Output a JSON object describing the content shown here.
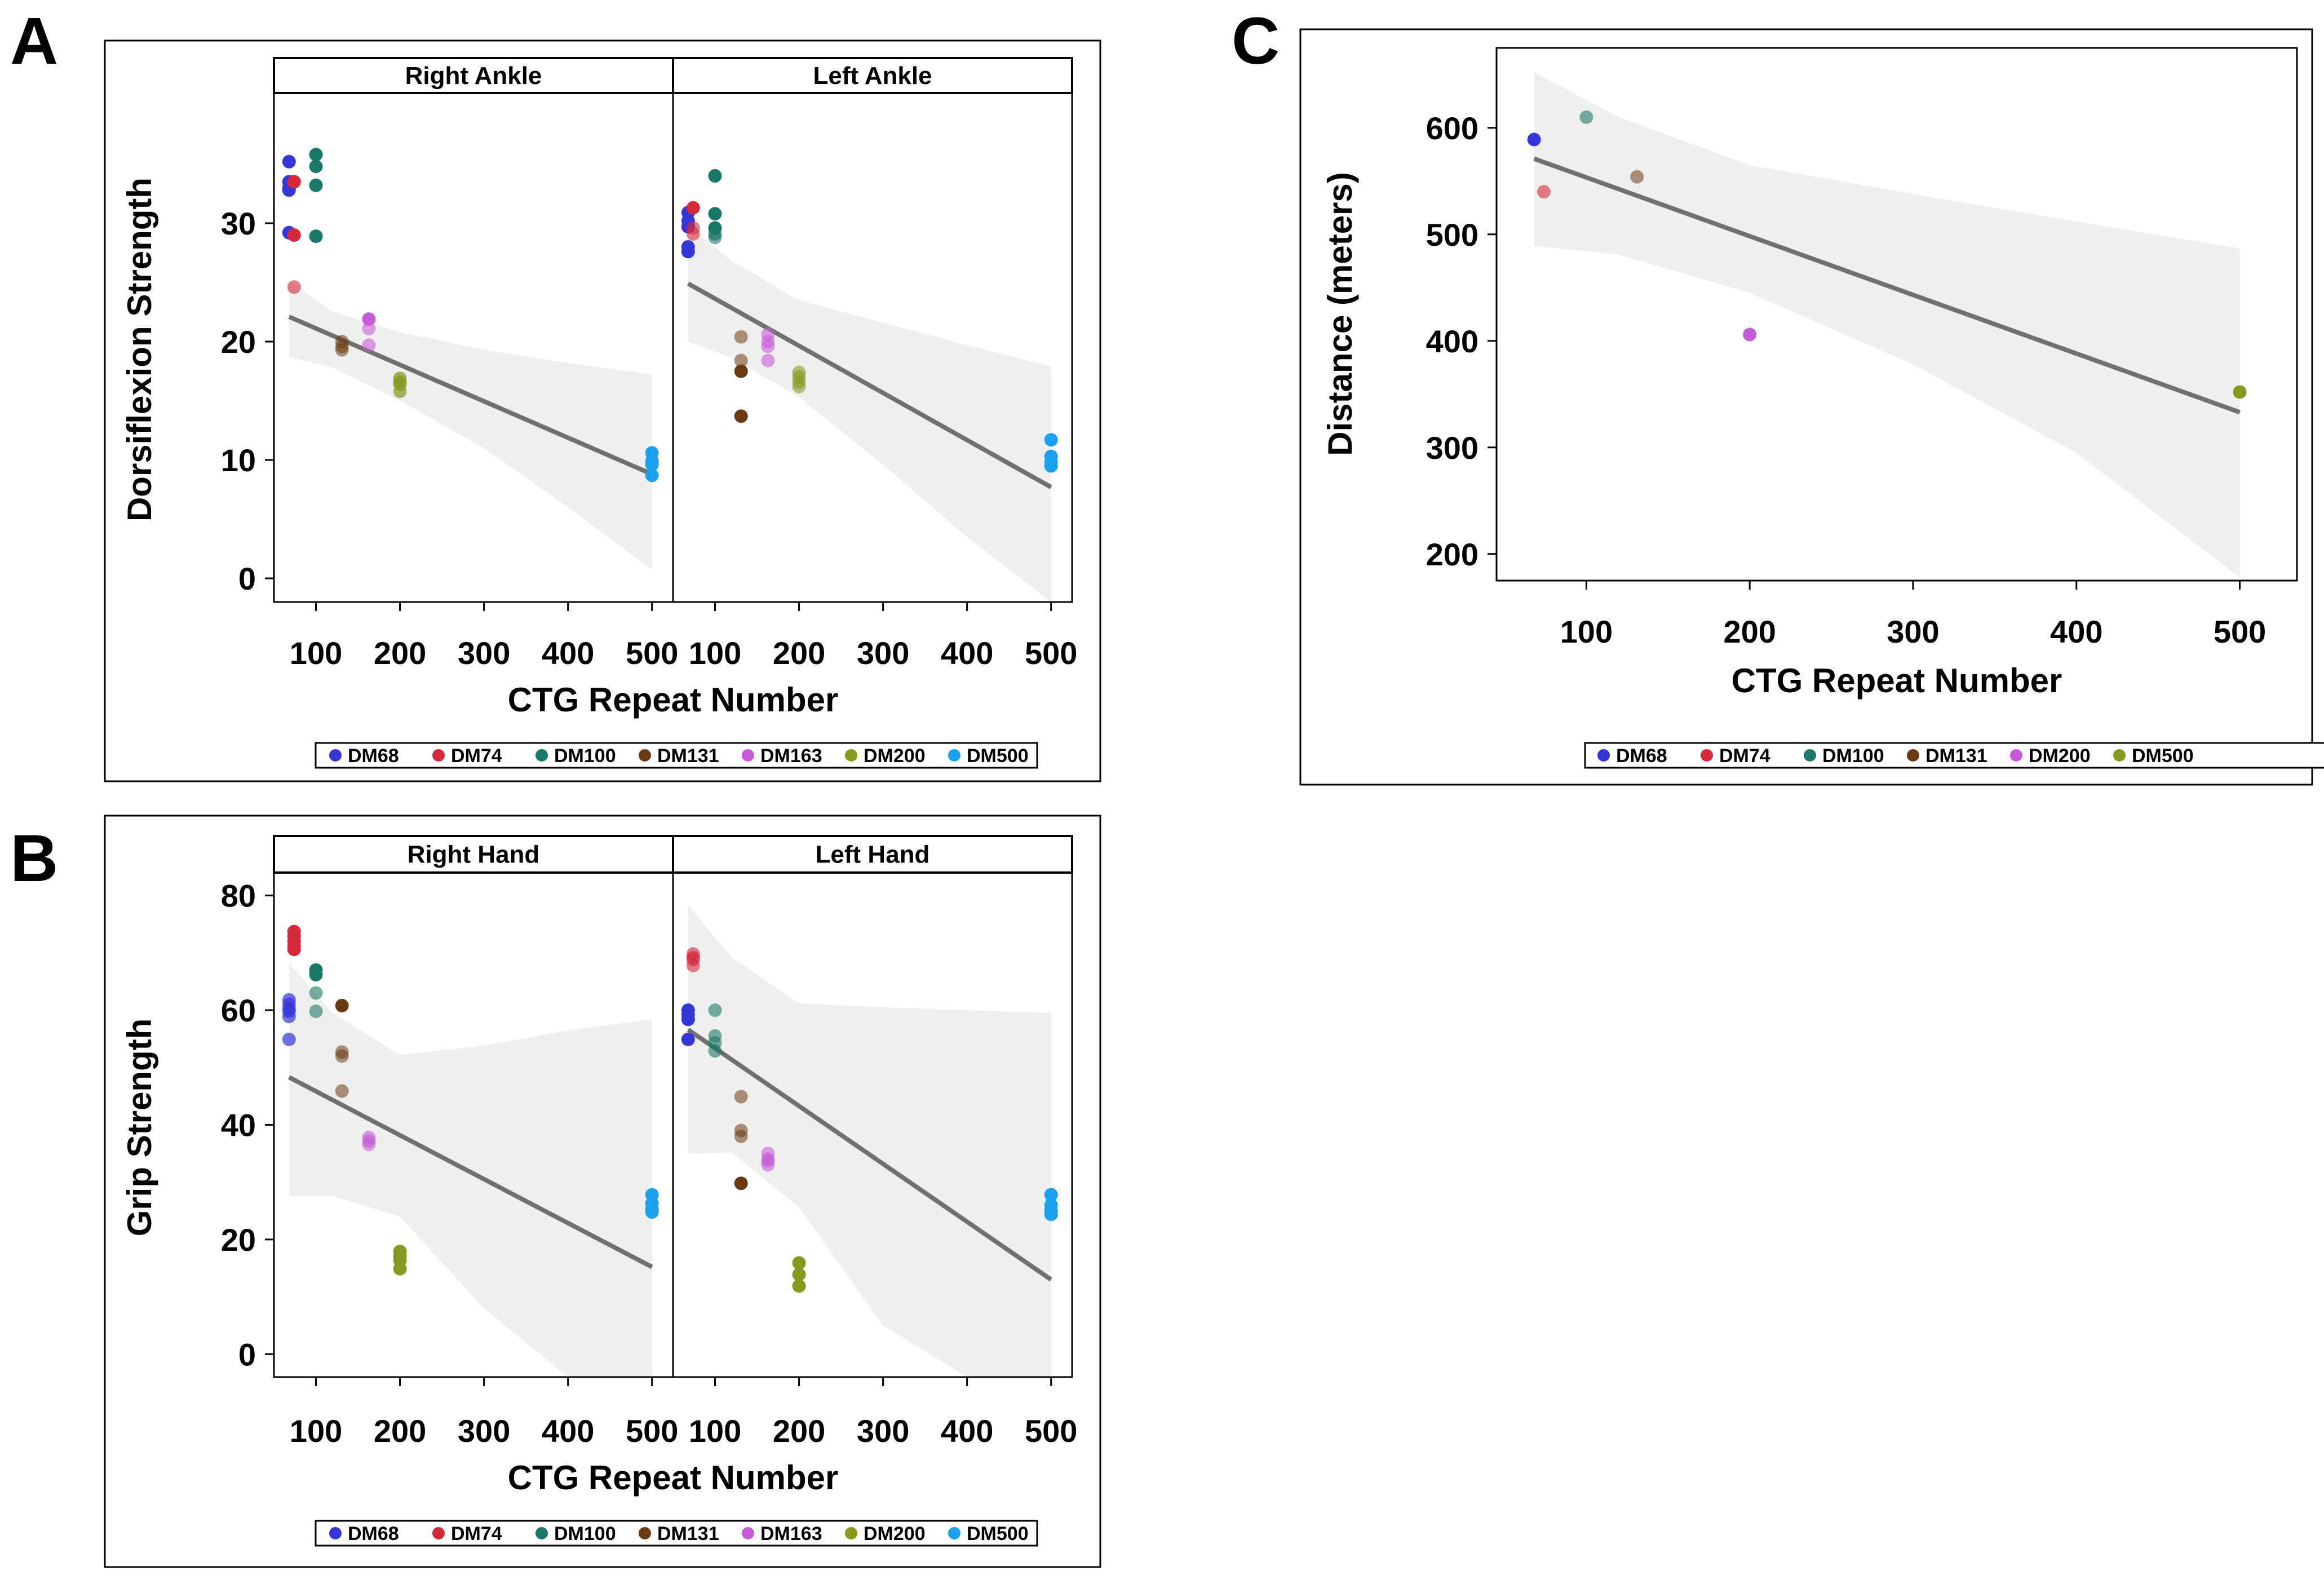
{
  "panel_labels": [
    "A",
    "B",
    "C"
  ],
  "colors": {
    "DM68": "#3535d8",
    "DM74": "#d42a3c",
    "DM100": "#1a7868",
    "DM131": "#6b3a12",
    "DM163": "#c65bd8",
    "DM200": "#86981e",
    "DM500": "#1aa0ee",
    "regression_line": "#707070",
    "confidence_band": "#efefef"
  },
  "chart_data": [
    {
      "id": "A",
      "type": "scatter",
      "facets": [
        "Right Ankle",
        "Left Ankle"
      ],
      "ylabel": "Dorsiflexion Strength",
      "xlabel": "CTG Repeat Number",
      "xlim": [
        50,
        525
      ],
      "ylim": [
        -2,
        41
      ],
      "xticks": [
        100,
        200,
        300,
        400,
        500
      ],
      "yticks": [
        0,
        10,
        20,
        30
      ],
      "legend": [
        "DM68",
        "DM74",
        "DM100",
        "DM131",
        "DM163",
        "DM200",
        "DM500"
      ],
      "panels": [
        {
          "facet": "Right Ankle",
          "fit": {
            "x": [
              68,
              500
            ],
            "y": [
              22.1,
              8.8
            ]
          },
          "band": {
            "x": [
              68,
              120,
              200,
              300,
              400,
              500
            ],
            "upper": [
              25.2,
              22.5,
              20.8,
              19.3,
              18.2,
              17.2
            ],
            "lower": [
              18.7,
              17.8,
              15.0,
              11.0,
              6.0,
              0.7
            ]
          },
          "series": [
            {
              "name": "DM68",
              "x": [
                68,
                68,
                68,
                68,
                68,
                68
              ],
              "y": [
                35.2,
                33.5,
                32.8,
                29.2,
                29.2,
                33.0
              ]
            },
            {
              "name": "DM74",
              "x": [
                74,
                74,
                74,
                74
              ],
              "y": [
                33.5,
                33.5,
                29.0,
                24.6
              ],
              "alpha": [
                1,
                1,
                1,
                0.6
              ]
            },
            {
              "name": "DM100",
              "x": [
                100,
                100,
                100,
                100
              ],
              "y": [
                35.8,
                34.8,
                33.2,
                28.9
              ]
            },
            {
              "name": "DM131",
              "x": [
                131,
                131,
                131
              ],
              "y": [
                20.0,
                19.6,
                19.3
              ],
              "alpha": [
                0.55,
                0.55,
                0.55
              ]
            },
            {
              "name": "DM163",
              "x": [
                163,
                163,
                163
              ],
              "y": [
                21.9,
                21.1,
                19.7
              ],
              "alpha": [
                1,
                0.6,
                0.6
              ]
            },
            {
              "name": "DM200",
              "x": [
                200,
                200,
                200,
                200
              ],
              "y": [
                16.9,
                16.6,
                16.4,
                15.8
              ],
              "alpha": [
                0.7,
                0.7,
                0.7,
                0.7
              ]
            },
            {
              "name": "DM500",
              "x": [
                500,
                500,
                500,
                500
              ],
              "y": [
                10.6,
                9.9,
                9.6,
                8.7
              ]
            }
          ]
        },
        {
          "facet": "Left Ankle",
          "fit": {
            "x": [
              68,
              500
            ],
            "y": [
              24.9,
              7.7
            ]
          },
          "band": {
            "x": [
              68,
              120,
              200,
              300,
              400,
              500
            ],
            "upper": [
              29.8,
              26.8,
              23.5,
              21.6,
              19.7,
              17.9
            ],
            "lower": [
              20.0,
              18.6,
              15.3,
              9.6,
              3.5,
              -2.0
            ]
          },
          "series": [
            {
              "name": "DM68",
              "x": [
                68,
                68,
                68,
                68,
                68
              ],
              "y": [
                30.9,
                30.2,
                29.7,
                28.0,
                27.6
              ]
            },
            {
              "name": "DM74",
              "x": [
                74,
                74,
                74
              ],
              "y": [
                31.3,
                29.6,
                29.1
              ],
              "alpha": [
                1,
                0.6,
                0.6
              ]
            },
            {
              "name": "DM100",
              "x": [
                100,
                100,
                100,
                100,
                100
              ],
              "y": [
                34.0,
                30.8,
                29.6,
                29.1,
                28.8
              ],
              "alpha": [
                1,
                1,
                1,
                0.7,
                0.6
              ]
            },
            {
              "name": "DM131",
              "x": [
                131,
                131,
                131,
                131
              ],
              "y": [
                20.4,
                18.4,
                17.5,
                13.7
              ],
              "alpha": [
                0.55,
                0.55,
                1,
                1
              ]
            },
            {
              "name": "DM163",
              "x": [
                163,
                163,
                163,
                163
              ],
              "y": [
                20.6,
                20.0,
                19.6,
                18.4
              ],
              "alpha": [
                0.6,
                0.6,
                0.6,
                0.6
              ]
            },
            {
              "name": "DM200",
              "x": [
                200,
                200,
                200,
                200
              ],
              "y": [
                17.4,
                17.0,
                16.6,
                16.2
              ],
              "alpha": [
                0.6,
                0.6,
                0.6,
                0.6
              ]
            },
            {
              "name": "DM500",
              "x": [
                500,
                500,
                500,
                500
              ],
              "y": [
                11.7,
                10.3,
                9.8,
                9.5
              ]
            }
          ]
        }
      ]
    },
    {
      "id": "B",
      "type": "scatter",
      "facets": [
        "Right Hand",
        "Left Hand"
      ],
      "ylabel": "Grip Strength",
      "xlabel": "CTG Repeat Number",
      "xlim": [
        50,
        525
      ],
      "ylim": [
        -4,
        84
      ],
      "xticks": [
        100,
        200,
        300,
        400,
        500
      ],
      "yticks": [
        0,
        20,
        40,
        60,
        80
      ],
      "legend": [
        "DM68",
        "DM74",
        "DM100",
        "DM131",
        "DM163",
        "DM200",
        "DM500"
      ],
      "panels": [
        {
          "facet": "Right Hand",
          "fit": {
            "x": [
              68,
              500
            ],
            "y": [
              48.3,
              15.2
            ]
          },
          "band": {
            "x": [
              68,
              120,
              200,
              300,
              400,
              500
            ],
            "upper": [
              68.2,
              59.5,
              52.2,
              53.8,
              56.5,
              58.4
            ],
            "lower": [
              27.6,
              27.6,
              24.0,
              8.0,
              -4.0,
              -4.0
            ]
          },
          "series": [
            {
              "name": "DM68",
              "x": [
                68,
                68,
                68,
                68,
                68,
                68
              ],
              "y": [
                61.8,
                61.0,
                60.2,
                59.8,
                58.9,
                54.9
              ],
              "alpha": [
                0.7,
                0.7,
                0.7,
                0.7,
                0.7,
                0.7
              ]
            },
            {
              "name": "DM74",
              "x": [
                74,
                74,
                74,
                74,
                74
              ],
              "y": [
                73.7,
                72.9,
                72.1,
                71.2,
                70.6
              ]
            },
            {
              "name": "DM100",
              "x": [
                100,
                100,
                100,
                100
              ],
              "y": [
                67.0,
                66.2,
                63.0,
                59.8
              ],
              "alpha": [
                1,
                1,
                0.6,
                0.6
              ]
            },
            {
              "name": "DM131",
              "x": [
                131,
                131,
                131,
                131
              ],
              "y": [
                60.8,
                52.7,
                52.0,
                45.9
              ],
              "alpha": [
                1,
                0.55,
                0.55,
                0.55
              ]
            },
            {
              "name": "DM163",
              "x": [
                163,
                163,
                163
              ],
              "y": [
                37.8,
                37.2,
                36.6
              ],
              "alpha": [
                0.6,
                0.6,
                0.6
              ]
            },
            {
              "name": "DM200",
              "x": [
                200,
                200,
                200,
                200
              ],
              "y": [
                17.9,
                17.1,
                16.4,
                14.9
              ]
            },
            {
              "name": "DM500",
              "x": [
                500,
                500,
                500,
                500
              ],
              "y": [
                27.8,
                26.3,
                25.3,
                24.8
              ]
            }
          ]
        },
        {
          "facet": "Left Hand",
          "fit": {
            "x": [
              68,
              500
            ],
            "y": [
              56.6,
              13.0
            ]
          },
          "band": {
            "x": [
              68,
              120,
              200,
              300,
              400,
              500
            ],
            "upper": [
              78.3,
              69.2,
              61.2,
              60.5,
              60.0,
              59.5
            ],
            "lower": [
              35.0,
              35.2,
              25.6,
              5.0,
              -4.0,
              -4.0
            ]
          },
          "series": [
            {
              "name": "DM68",
              "x": [
                68,
                68,
                68,
                68
              ],
              "y": [
                60.0,
                59.2,
                58.4,
                54.9
              ]
            },
            {
              "name": "DM74",
              "x": [
                74,
                74,
                74,
                74
              ],
              "y": [
                69.8,
                69.2,
                68.8,
                67.8
              ],
              "alpha": [
                0.6,
                0.6,
                0.6,
                0.6
              ]
            },
            {
              "name": "DM100",
              "x": [
                100,
                100,
                100,
                100
              ],
              "y": [
                60.0,
                55.5,
                54.3,
                52.9
              ],
              "alpha": [
                0.6,
                0.6,
                0.6,
                0.6
              ]
            },
            {
              "name": "DM131",
              "x": [
                131,
                131,
                131,
                131
              ],
              "y": [
                44.9,
                39.0,
                38.0,
                29.8
              ],
              "alpha": [
                0.55,
                0.55,
                0.55,
                1
              ]
            },
            {
              "name": "DM163",
              "x": [
                163,
                163,
                163,
                163
              ],
              "y": [
                35.0,
                34.0,
                33.7,
                33.0
              ],
              "alpha": [
                0.6,
                0.6,
                0.6,
                0.6
              ]
            },
            {
              "name": "DM200",
              "x": [
                200,
                200,
                200
              ],
              "y": [
                15.9,
                13.9,
                11.9
              ]
            },
            {
              "name": "DM500",
              "x": [
                500,
                500,
                500,
                500
              ],
              "y": [
                27.8,
                26.0,
                25.0,
                24.4
              ]
            }
          ]
        }
      ]
    },
    {
      "id": "C",
      "type": "scatter",
      "facets": [],
      "ylabel": "Distance (meters)",
      "xlabel": "CTG Repeat Number",
      "xlim": [
        45,
        535
      ],
      "ylim": [
        175,
        675
      ],
      "xticks": [
        100,
        200,
        300,
        400,
        500
      ],
      "yticks": [
        200,
        300,
        400,
        500,
        600
      ],
      "legend": [
        "DM68",
        "DM74",
        "DM100",
        "DM131",
        "DM200",
        "DM500"
      ],
      "panels": [
        {
          "facet": "",
          "fit": {
            "x": [
              68,
              500
            ],
            "y": [
              571,
              333
            ]
          },
          "band": {
            "x": [
              68,
              120,
              200,
              300,
              400,
              500
            ],
            "upper": [
              652,
              610,
              565,
              538,
              512,
              487
            ],
            "lower": [
              489,
              481,
              445,
              378,
              295,
              178
            ]
          },
          "series": [
            {
              "name": "DM68",
              "x": [
                68
              ],
              "y": [
                589
              ]
            },
            {
              "name": "DM74",
              "x": [
                74
              ],
              "y": [
                540
              ],
              "alpha": [
                0.6
              ]
            },
            {
              "name": "DM100",
              "x": [
                100
              ],
              "y": [
                610
              ],
              "alpha": [
                0.6
              ]
            },
            {
              "name": "DM131",
              "x": [
                131
              ],
              "y": [
                554
              ],
              "alpha": [
                0.55
              ]
            },
            {
              "name": "DM200",
              "x": [
                200
              ],
              "y": [
                406
              ],
              "colorKey": "DM163"
            },
            {
              "name": "DM500",
              "x": [
                500
              ],
              "y": [
                352
              ],
              "colorKey": "DM200"
            }
          ]
        }
      ]
    }
  ],
  "legend_color_keys": {
    "C": [
      "DM68",
      "DM74",
      "DM100",
      "DM131",
      "DM163",
      "DM200"
    ]
  }
}
